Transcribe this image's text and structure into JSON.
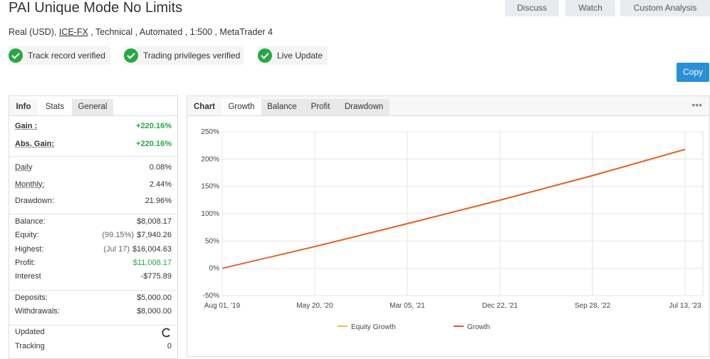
{
  "header": {
    "title": "PAI Unique Mode No Limits",
    "buttons": [
      "Discuss",
      "Watch",
      "Custom Analysis"
    ],
    "subtitle": {
      "before": "Real (USD), ",
      "link": "ICE-FX",
      "after": " , Technical , Automated , 1:500 , MetaTrader 4"
    },
    "badges": [
      "Track record verified",
      "Trading privileges verified",
      "Live Update"
    ],
    "copy": "Copy"
  },
  "info": {
    "tabs": [
      "Info",
      "Stats",
      "General"
    ],
    "groups": [
      [
        {
          "label": "Gain :",
          "value": "+220.16%"
        },
        {
          "label": "Abs. Gain:",
          "value": "+220.16%"
        }
      ],
      [
        {
          "label": "Daily",
          "value": "0.08%"
        },
        {
          "label": "Monthly:",
          "value": "2.44%"
        },
        {
          "label": "Drawdown:",
          "value": "21.96%"
        }
      ],
      [
        {
          "label": "Balance:",
          "value": "$8,008.17"
        },
        {
          "label": "Equity:",
          "note": "(99.15%)",
          "value": "$7,940.26"
        },
        {
          "label": "Highest:",
          "note": "(Jul 17)",
          "value": "$16,004.63"
        },
        {
          "label": "Profit:",
          "value": "$11,008.17"
        },
        {
          "label": "Interest",
          "value": "-$775.89"
        }
      ],
      [
        {
          "label": "Deposits:",
          "value": "$5,000.00"
        },
        {
          "label": "Withdrawals:",
          "value": "$8,000.00"
        }
      ],
      [
        {
          "label": "Updated"
        },
        {
          "label": "Tracking",
          "value": "0"
        }
      ]
    ]
  },
  "chart_panel": {
    "tabs": [
      "Chart",
      "Growth",
      "Balance",
      "Profit",
      "Drawdown"
    ]
  },
  "chart_data": {
    "type": "line",
    "x": [
      "Aug 01, '19",
      "May 20, '20",
      "Mar 05, '21",
      "Dec 22, '21",
      "Sep 28, '22",
      "Jul 13, '23"
    ],
    "series": [
      {
        "name": "Equity Growth",
        "color": "#f2c037",
        "values": [
          0,
          39,
          81,
          124,
          169,
          217
        ]
      },
      {
        "name": "Growth",
        "color": "#e0523a",
        "values": [
          0,
          40,
          82,
          125,
          170,
          218
        ]
      }
    ],
    "ylim": [
      -50,
      250
    ],
    "yticks": [
      {
        "value": -50,
        "label": "-50%"
      },
      {
        "value": 0,
        "label": "0%"
      },
      {
        "value": 50,
        "label": "50%"
      },
      {
        "value": 100,
        "label": "100%"
      },
      {
        "value": 150,
        "label": "150%"
      },
      {
        "value": 200,
        "label": "200%"
      },
      {
        "value": 250,
        "label": "250%"
      }
    ],
    "grid": true
  }
}
